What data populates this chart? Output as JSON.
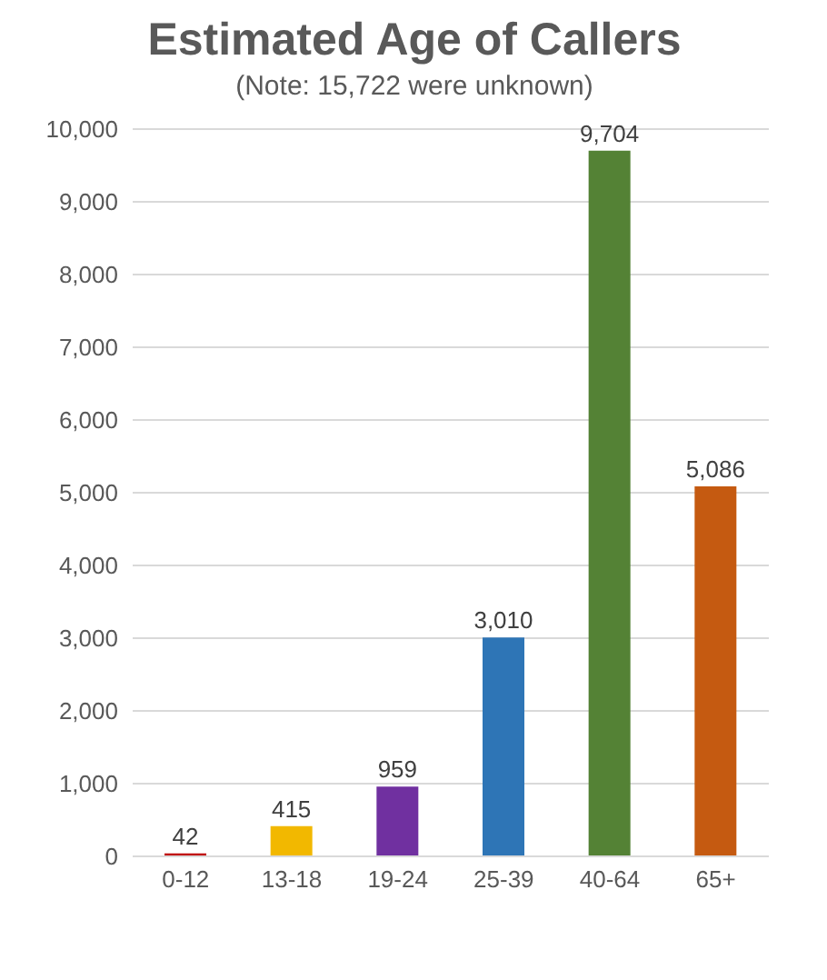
{
  "chart_data": {
    "type": "bar",
    "title": "Estimated Age of Callers",
    "subtitle": "(Note: 15,722 were unknown)",
    "categories": [
      "0-12",
      "13-18",
      "19-24",
      "25-39",
      "40-64",
      "65+"
    ],
    "values": [
      42,
      415,
      959,
      3010,
      9704,
      5086
    ],
    "colors": [
      "#c00000",
      "#f2b800",
      "#7030a0",
      "#2e75b6",
      "#548235",
      "#c55a11"
    ],
    "ylim": [
      0,
      10000
    ],
    "yticks": [
      {
        "value": 0,
        "label": "0"
      },
      {
        "value": 1000,
        "label": "1,000"
      },
      {
        "value": 2000,
        "label": "2,000"
      },
      {
        "value": 3000,
        "label": "3,000"
      },
      {
        "value": 4000,
        "label": "4,000"
      },
      {
        "value": 5000,
        "label": "5,000"
      },
      {
        "value": 6000,
        "label": "6,000"
      },
      {
        "value": 7000,
        "label": "7,000"
      },
      {
        "value": 8000,
        "label": "8,000"
      },
      {
        "value": 9000,
        "label": "9,000"
      },
      {
        "value": 10000,
        "label": "10,000"
      }
    ],
    "value_labels": [
      "42",
      "415",
      "959",
      "3,010",
      "9,704",
      "5,086"
    ],
    "grid": "y"
  }
}
